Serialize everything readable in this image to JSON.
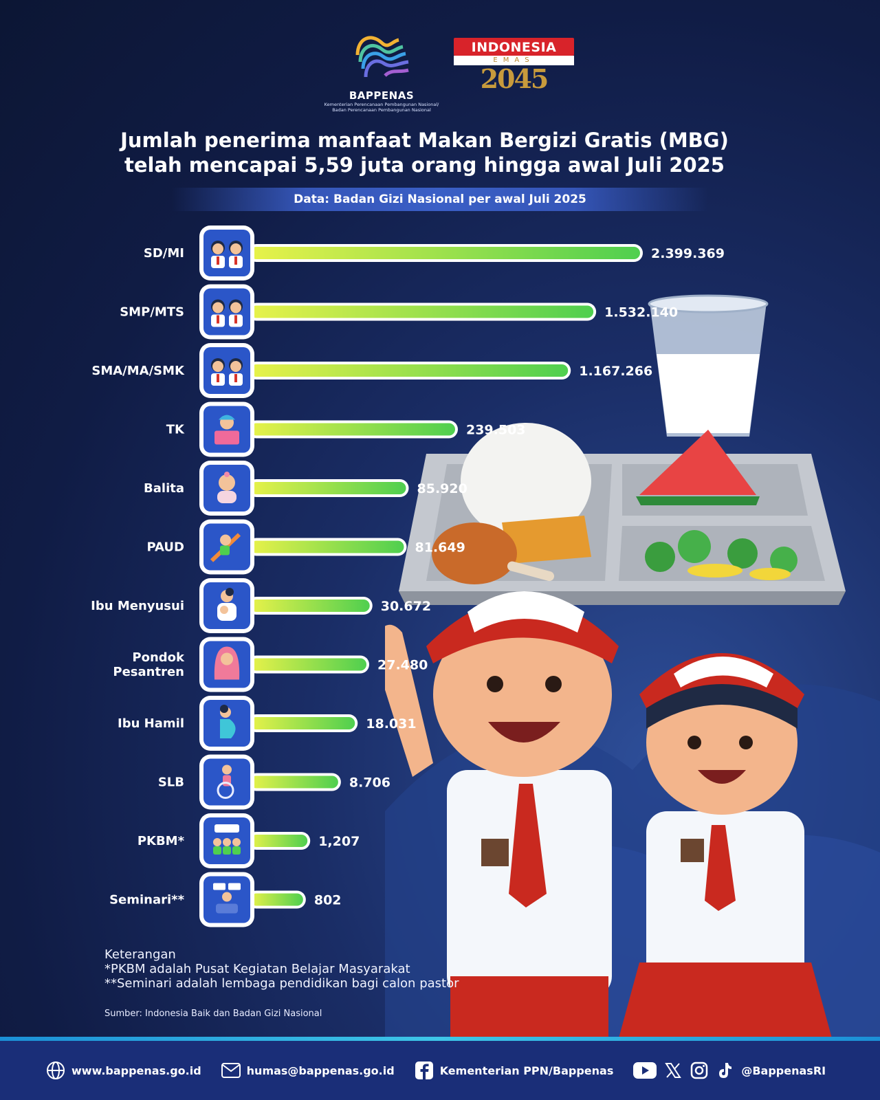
{
  "header": {
    "bappenas_name": "BAPPENAS",
    "bappenas_sub1": "Kementerian Perencanaan Pembangunan Nasional/",
    "bappenas_sub2": "Badan Perencanaan Pembangunan Nasional",
    "emas_line1": "INDONESIA",
    "emas_line2": "EMAS",
    "emas_year": "2045"
  },
  "title_line1": "Jumlah penerima manfaat Makan Bergizi Gratis (MBG)",
  "title_line2": "telah mencapai 5,59 juta orang hingga awal Juli 2025",
  "source_band": "Data: Badan Gizi Nasional per awal Juli 2025",
  "chart_data": {
    "type": "bar",
    "orientation": "horizontal",
    "categories": [
      "SD/MI",
      "SMP/MTS",
      "SMA/MA/SMK",
      "TK",
      "Balita",
      "PAUD",
      "Ibu Menyusui",
      "Pondok Pesantren",
      "Ibu Hamil",
      "SLB",
      "PKBM*",
      "Seminari**"
    ],
    "category_lines": [
      [
        "SD/MI"
      ],
      [
        "SMP/MTS"
      ],
      [
        "SMA/MA/SMK"
      ],
      [
        "TK"
      ],
      [
        "Balita"
      ],
      [
        "PAUD"
      ],
      [
        "Ibu Menyusui"
      ],
      [
        "Pondok",
        "Pesantren"
      ],
      [
        "Ibu Hamil"
      ],
      [
        "SLB"
      ],
      [
        "PKBM*"
      ],
      [
        "Seminari**"
      ]
    ],
    "values": [
      2399369,
      1532140,
      1167266,
      239503,
      85920,
      81649,
      30672,
      27480,
      18031,
      8706,
      1207,
      802
    ],
    "value_labels": [
      "2.399.369",
      "1.532.140",
      "1.167.266",
      "239.503",
      "85.920",
      "81.649",
      "30.672",
      "27.480",
      "18.031",
      "8.706",
      "1,207",
      "802"
    ],
    "icons": [
      "students-icon",
      "students-icon",
      "students-icon",
      "child-reading-icon",
      "baby-icon",
      "child-slide-icon",
      "nursing-mother-icon",
      "hijab-girl-icon",
      "pregnant-woman-icon",
      "wheelchair-icon",
      "community-class-icon",
      "seminar-icon"
    ],
    "scale": "non-linear (visual lengths not proportional)",
    "bar_color_start": "#e8f24a",
    "bar_color_end": "#4fcf4f"
  },
  "notes": {
    "heading": "Keterangan",
    "line1": "*PKBM adalah Pusat Kegiatan Belajar Masyarakat",
    "line2": "**Seminari adalah lembaga pendidikan bagi calon pastor"
  },
  "sumber": "Sumber: Indonesia Baik dan Badan Gizi Nasional",
  "footer": {
    "website": "www.bappenas.go.id",
    "email": "humas@bappenas.go.id",
    "facebook": "Kementerian PPN/Bappenas",
    "social_handle": "@BappenasRI"
  },
  "colors": {
    "background": "#101c45",
    "footer": "#1a2e78",
    "icon_bg": "#2b56c8"
  }
}
